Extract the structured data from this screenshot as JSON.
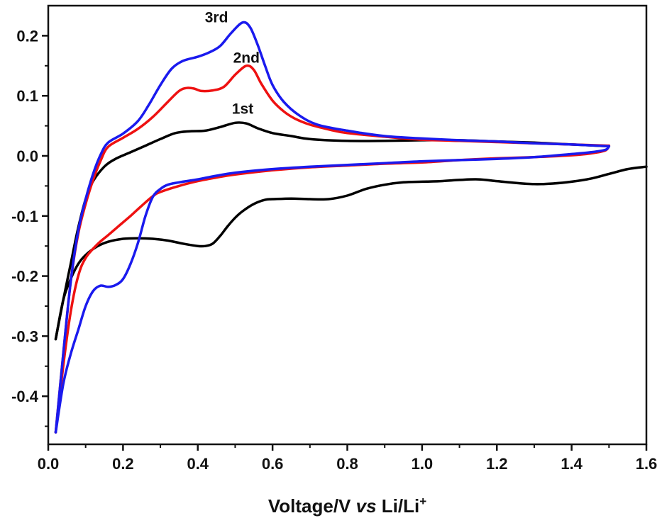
{
  "chart_data": {
    "type": "line",
    "title": "",
    "xlabel": {
      "pre": "Voltage/V ",
      "vs": "vs",
      "post": " Li/Li",
      "sup": "+"
    },
    "ylabel": "",
    "xlim": [
      0.0,
      1.6
    ],
    "ylim": [
      -0.48,
      0.25
    ],
    "x_ticks": [
      0.0,
      0.2,
      0.4,
      0.6,
      0.8,
      1.0,
      1.2,
      1.4,
      1.6
    ],
    "x_tick_labels": [
      "0.0",
      "0.2",
      "0.4",
      "0.6",
      "0.8",
      "1.0",
      "1.2",
      "1.4",
      "1.6"
    ],
    "y_ticks": [
      -0.4,
      -0.3,
      -0.2,
      -0.1,
      0.0,
      0.1,
      0.2
    ],
    "y_tick_labels": [
      "-0.4",
      "-0.3",
      "-0.2",
      "-0.1",
      "0.0",
      "0.1",
      "0.2"
    ],
    "grid": false,
    "series": [
      {
        "name": "1st",
        "color": "#000000",
        "label_at": [
          0.52,
          0.07
        ],
        "cathodic": [
          [
            1.6,
            -0.018
          ],
          [
            1.55,
            -0.022
          ],
          [
            1.5,
            -0.03
          ],
          [
            1.45,
            -0.038
          ],
          [
            1.4,
            -0.043
          ],
          [
            1.35,
            -0.046
          ],
          [
            1.3,
            -0.047
          ],
          [
            1.25,
            -0.045
          ],
          [
            1.2,
            -0.042
          ],
          [
            1.15,
            -0.039
          ],
          [
            1.1,
            -0.04
          ],
          [
            1.05,
            -0.042
          ],
          [
            1.0,
            -0.043
          ],
          [
            0.95,
            -0.044
          ],
          [
            0.9,
            -0.048
          ],
          [
            0.85,
            -0.055
          ],
          [
            0.8,
            -0.066
          ],
          [
            0.75,
            -0.072
          ],
          [
            0.7,
            -0.072
          ],
          [
            0.65,
            -0.071
          ],
          [
            0.6,
            -0.072
          ],
          [
            0.58,
            -0.073
          ],
          [
            0.55,
            -0.08
          ],
          [
            0.52,
            -0.092
          ],
          [
            0.5,
            -0.103
          ],
          [
            0.48,
            -0.117
          ],
          [
            0.46,
            -0.133
          ],
          [
            0.44,
            -0.146
          ],
          [
            0.42,
            -0.15
          ],
          [
            0.4,
            -0.15
          ],
          [
            0.36,
            -0.146
          ],
          [
            0.32,
            -0.141
          ],
          [
            0.28,
            -0.138
          ],
          [
            0.24,
            -0.137
          ],
          [
            0.2,
            -0.138
          ],
          [
            0.16,
            -0.143
          ],
          [
            0.13,
            -0.151
          ],
          [
            0.1,
            -0.165
          ],
          [
            0.08,
            -0.18
          ],
          [
            0.06,
            -0.205
          ],
          [
            0.04,
            -0.24
          ],
          [
            0.02,
            -0.305
          ]
        ],
        "anodic": [
          [
            0.02,
            -0.305
          ],
          [
            0.04,
            -0.24
          ],
          [
            0.06,
            -0.18
          ],
          [
            0.08,
            -0.12
          ],
          [
            0.1,
            -0.072
          ],
          [
            0.12,
            -0.042
          ],
          [
            0.15,
            -0.018
          ],
          [
            0.18,
            -0.005
          ],
          [
            0.22,
            0.006
          ],
          [
            0.26,
            0.017
          ],
          [
            0.3,
            0.028
          ],
          [
            0.34,
            0.038
          ],
          [
            0.38,
            0.041
          ],
          [
            0.42,
            0.042
          ],
          [
            0.46,
            0.048
          ],
          [
            0.5,
            0.055
          ],
          [
            0.53,
            0.054
          ],
          [
            0.56,
            0.046
          ],
          [
            0.6,
            0.038
          ],
          [
            0.65,
            0.033
          ],
          [
            0.7,
            0.028
          ],
          [
            0.8,
            0.025
          ],
          [
            0.9,
            0.025
          ],
          [
            1.0,
            0.026
          ],
          [
            1.1,
            0.026
          ],
          [
            1.2,
            0.024
          ],
          [
            1.3,
            0.022
          ],
          [
            1.4,
            0.019
          ],
          [
            1.5,
            0.016
          ]
        ]
      },
      {
        "name": "2nd",
        "color": "#ee1111",
        "label_at": [
          0.53,
          0.155
        ],
        "anodic": [
          [
            0.02,
            -0.46
          ],
          [
            0.04,
            -0.33
          ],
          [
            0.06,
            -0.21
          ],
          [
            0.08,
            -0.13
          ],
          [
            0.1,
            -0.08
          ],
          [
            0.12,
            -0.04
          ],
          [
            0.14,
            -0.008
          ],
          [
            0.16,
            0.015
          ],
          [
            0.2,
            0.03
          ],
          [
            0.24,
            0.045
          ],
          [
            0.28,
            0.065
          ],
          [
            0.32,
            0.09
          ],
          [
            0.35,
            0.108
          ],
          [
            0.37,
            0.113
          ],
          [
            0.39,
            0.112
          ],
          [
            0.41,
            0.108
          ],
          [
            0.44,
            0.109
          ],
          [
            0.47,
            0.115
          ],
          [
            0.5,
            0.135
          ],
          [
            0.53,
            0.15
          ],
          [
            0.55,
            0.143
          ],
          [
            0.57,
            0.12
          ],
          [
            0.6,
            0.092
          ],
          [
            0.63,
            0.074
          ],
          [
            0.66,
            0.062
          ],
          [
            0.7,
            0.052
          ],
          [
            0.75,
            0.044
          ],
          [
            0.8,
            0.038
          ],
          [
            0.9,
            0.032
          ],
          [
            1.0,
            0.027
          ],
          [
            1.1,
            0.025
          ],
          [
            1.2,
            0.023
          ],
          [
            1.3,
            0.021
          ],
          [
            1.4,
            0.019
          ],
          [
            1.5,
            0.017
          ]
        ],
        "cathodic": [
          [
            1.5,
            0.017
          ],
          [
            1.49,
            0.009
          ],
          [
            1.45,
            0.004
          ],
          [
            1.4,
            0.001
          ],
          [
            1.3,
            -0.002
          ],
          [
            1.2,
            -0.004
          ],
          [
            1.1,
            -0.007
          ],
          [
            1.0,
            -0.011
          ],
          [
            0.9,
            -0.013
          ],
          [
            0.8,
            -0.016
          ],
          [
            0.7,
            -0.019
          ],
          [
            0.6,
            -0.024
          ],
          [
            0.5,
            -0.031
          ],
          [
            0.45,
            -0.036
          ],
          [
            0.4,
            -0.042
          ],
          [
            0.35,
            -0.05
          ],
          [
            0.3,
            -0.06
          ],
          [
            0.28,
            -0.067
          ],
          [
            0.25,
            -0.083
          ],
          [
            0.22,
            -0.1
          ],
          [
            0.19,
            -0.116
          ],
          [
            0.16,
            -0.132
          ],
          [
            0.13,
            -0.148
          ],
          [
            0.1,
            -0.17
          ],
          [
            0.08,
            -0.2
          ],
          [
            0.06,
            -0.26
          ],
          [
            0.04,
            -0.35
          ],
          [
            0.02,
            -0.46
          ]
        ]
      },
      {
        "name": "3rd",
        "color": "#1a1aee",
        "label_at": [
          0.45,
          0.222
        ],
        "anodic": [
          [
            0.02,
            -0.46
          ],
          [
            0.04,
            -0.33
          ],
          [
            0.06,
            -0.21
          ],
          [
            0.08,
            -0.125
          ],
          [
            0.1,
            -0.072
          ],
          [
            0.12,
            -0.03
          ],
          [
            0.14,
            0.002
          ],
          [
            0.16,
            0.022
          ],
          [
            0.2,
            0.037
          ],
          [
            0.24,
            0.058
          ],
          [
            0.27,
            0.086
          ],
          [
            0.3,
            0.118
          ],
          [
            0.33,
            0.145
          ],
          [
            0.36,
            0.158
          ],
          [
            0.4,
            0.165
          ],
          [
            0.43,
            0.172
          ],
          [
            0.46,
            0.183
          ],
          [
            0.49,
            0.205
          ],
          [
            0.52,
            0.222
          ],
          [
            0.54,
            0.214
          ],
          [
            0.56,
            0.185
          ],
          [
            0.58,
            0.15
          ],
          [
            0.6,
            0.118
          ],
          [
            0.63,
            0.09
          ],
          [
            0.67,
            0.068
          ],
          [
            0.72,
            0.052
          ],
          [
            0.8,
            0.042
          ],
          [
            0.9,
            0.033
          ],
          [
            1.0,
            0.029
          ],
          [
            1.1,
            0.026
          ],
          [
            1.2,
            0.024
          ],
          [
            1.3,
            0.021
          ],
          [
            1.4,
            0.019
          ],
          [
            1.5,
            0.016
          ]
        ],
        "cathodic": [
          [
            1.5,
            0.016
          ],
          [
            1.49,
            0.01
          ],
          [
            1.45,
            0.006
          ],
          [
            1.4,
            0.003
          ],
          [
            1.3,
            -0.002
          ],
          [
            1.2,
            -0.005
          ],
          [
            1.1,
            -0.007
          ],
          [
            1.0,
            -0.009
          ],
          [
            0.9,
            -0.012
          ],
          [
            0.8,
            -0.015
          ],
          [
            0.7,
            -0.018
          ],
          [
            0.6,
            -0.022
          ],
          [
            0.5,
            -0.028
          ],
          [
            0.45,
            -0.033
          ],
          [
            0.4,
            -0.039
          ],
          [
            0.35,
            -0.044
          ],
          [
            0.32,
            -0.048
          ],
          [
            0.3,
            -0.055
          ],
          [
            0.28,
            -0.068
          ],
          [
            0.26,
            -0.1
          ],
          [
            0.24,
            -0.145
          ],
          [
            0.22,
            -0.18
          ],
          [
            0.2,
            -0.205
          ],
          [
            0.18,
            -0.215
          ],
          [
            0.16,
            -0.218
          ],
          [
            0.14,
            -0.216
          ],
          [
            0.12,
            -0.225
          ],
          [
            0.1,
            -0.25
          ],
          [
            0.08,
            -0.29
          ],
          [
            0.06,
            -0.33
          ],
          [
            0.04,
            -0.38
          ],
          [
            0.02,
            -0.46
          ]
        ]
      }
    ]
  }
}
